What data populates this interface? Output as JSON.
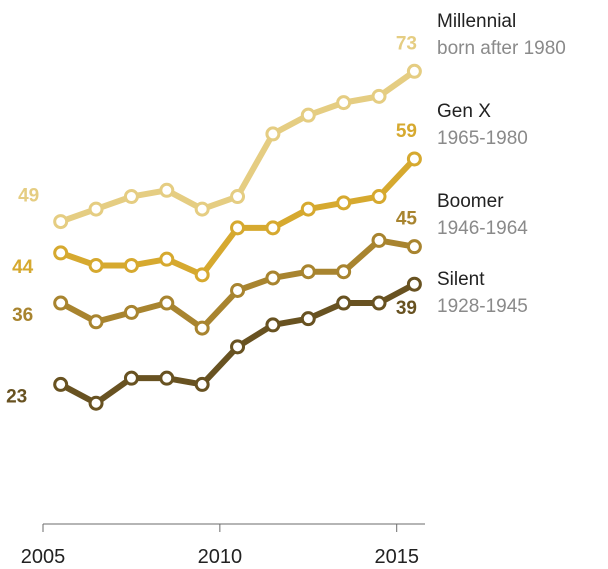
{
  "chart_data": {
    "type": "line",
    "x": [
      2005.5,
      2006.5,
      2007.5,
      2008.5,
      2009.5,
      2010.5,
      2011.5,
      2012.5,
      2013.5,
      2014.5,
      2015.5
    ],
    "xticks": [
      2005,
      2010,
      2015
    ],
    "xlim": [
      2005,
      2015.8
    ],
    "ylim": [
      17,
      78
    ],
    "grid": false,
    "legend": "right",
    "series": [
      {
        "name": "Millennial",
        "subtitle": "born after 1980",
        "color": "#e5cd82",
        "values": [
          49,
          51,
          53,
          54,
          51,
          53,
          63,
          66,
          68,
          69,
          73
        ],
        "start_label": "49",
        "end_label": "73"
      },
      {
        "name": "Gen X",
        "subtitle": "1965-1980",
        "color": "#d6a92f",
        "values": [
          44,
          42,
          42,
          43,
          40.5,
          48,
          48,
          51,
          52,
          53,
          59
        ],
        "start_label": "44",
        "end_label": "59"
      },
      {
        "name": "Boomer",
        "subtitle": "1946-1964",
        "color": "#a8842f",
        "values": [
          36,
          33,
          34.5,
          36,
          32,
          38,
          40,
          41,
          41,
          46,
          45
        ],
        "start_label": "36",
        "end_label": "45"
      },
      {
        "name": "Silent",
        "subtitle": "1928-1945",
        "color": "#685221",
        "values": [
          23,
          20,
          24,
          24,
          23,
          29,
          32.5,
          33.5,
          36,
          36,
          39
        ],
        "start_label": "23",
        "end_label": "39"
      }
    ]
  }
}
